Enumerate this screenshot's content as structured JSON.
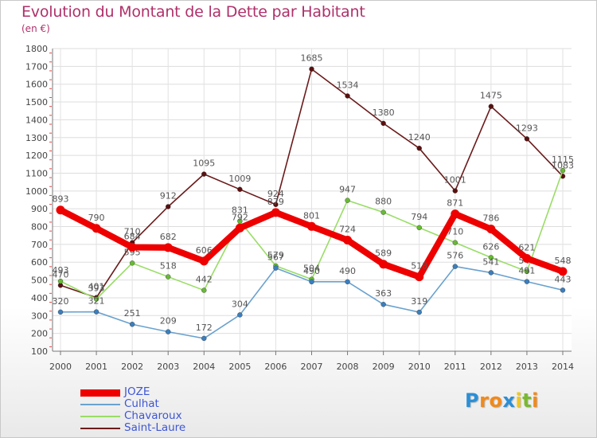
{
  "chart": {
    "title": "Evolution du Montant de la Dette par Habitant",
    "subtitle": "(en €)"
  },
  "chart_data": {
    "type": "line",
    "title": "Evolution du Montant de la Dette par Habitant",
    "subtitle": "(en €)",
    "xlabel": "",
    "ylabel": "",
    "categories": [
      "2000",
      "2001",
      "2002",
      "2003",
      "2004",
      "2005",
      "2006",
      "2007",
      "2008",
      "2009",
      "2010",
      "2011",
      "2012",
      "2013",
      "2014"
    ],
    "ylim": [
      100,
      1800
    ],
    "yticks": [
      100,
      200,
      300,
      400,
      500,
      600,
      700,
      800,
      900,
      1000,
      1100,
      1200,
      1300,
      1400,
      1500,
      1600,
      1700,
      1800
    ],
    "grid": true,
    "legend_position": "bottom-left",
    "series": [
      {
        "name": "Saint-Laure",
        "color": "#6b1a1a",
        "marker_color": "#5a1010",
        "values": [
          470,
          401,
          710,
          912,
          1095,
          1009,
          924,
          1685,
          1534,
          1380,
          1240,
          1001,
          1475,
          1293,
          1083
        ],
        "labels": [
          "470",
          "401",
          "710",
          "912",
          "1095",
          "1009",
          "924",
          "1685",
          "1534",
          "1380",
          "1240",
          "1001",
          "1475",
          "1293",
          "1083"
        ]
      },
      {
        "name": "Chavaroux",
        "color": "#99dd66",
        "marker_color": "#66bb33",
        "values": [
          493,
          393,
          595,
          518,
          442,
          831,
          579,
          504,
          947,
          880,
          794,
          710,
          626,
          548,
          1115
        ],
        "labels": [
          "493",
          "393",
          "595",
          "518",
          "442",
          "831",
          "579",
          "504",
          "947",
          "880",
          "794",
          "710",
          "626",
          "548",
          "1115"
        ]
      },
      {
        "name": "Culhat",
        "color": "#6aa2cf",
        "marker_color": "#3a7fbf",
        "values": [
          320,
          321,
          251,
          209,
          172,
          304,
          567,
          490,
          490,
          363,
          319,
          576,
          541,
          491,
          443
        ],
        "labels": [
          "320",
          "321",
          "251",
          "209",
          "172",
          "304",
          "567",
          "490",
          "490",
          "363",
          "319",
          "576",
          "541",
          "491",
          "443"
        ]
      },
      {
        "name": "JOZE",
        "color": "#ee0000",
        "marker_color": "#ee0000",
        "values": [
          893,
          790,
          684,
          682,
          606,
          792,
          879,
          801,
          724,
          589,
          518,
          871,
          786,
          621,
          548
        ],
        "labels": [
          "893",
          "790",
          "684",
          "682",
          "606",
          "792",
          "879",
          "801",
          "724",
          "589",
          "518",
          "871",
          "786",
          "621",
          "548"
        ]
      }
    ]
  },
  "legend": {
    "items": [
      {
        "label": "JOZE",
        "color": "#ee0000",
        "thickness": 9
      },
      {
        "label": "Culhat",
        "color": "#6aa2cf",
        "thickness": 2
      },
      {
        "label": "Chavaroux",
        "color": "#99dd66",
        "thickness": 2
      },
      {
        "label": "Saint-Laure",
        "color": "#6b1a1a",
        "thickness": 2
      }
    ]
  },
  "brand": {
    "letters": [
      {
        "ch": "P",
        "color": "#2a8fd6"
      },
      {
        "ch": "r",
        "color": "#f08a1c"
      },
      {
        "ch": "o",
        "color": "#f08a1c"
      },
      {
        "ch": "x",
        "color": "#2a8fd6"
      },
      {
        "ch": "i",
        "color": "#f0c81c"
      },
      {
        "ch": "t",
        "color": "#7ab833"
      },
      {
        "ch": "i",
        "color": "#f08a1c"
      }
    ]
  }
}
